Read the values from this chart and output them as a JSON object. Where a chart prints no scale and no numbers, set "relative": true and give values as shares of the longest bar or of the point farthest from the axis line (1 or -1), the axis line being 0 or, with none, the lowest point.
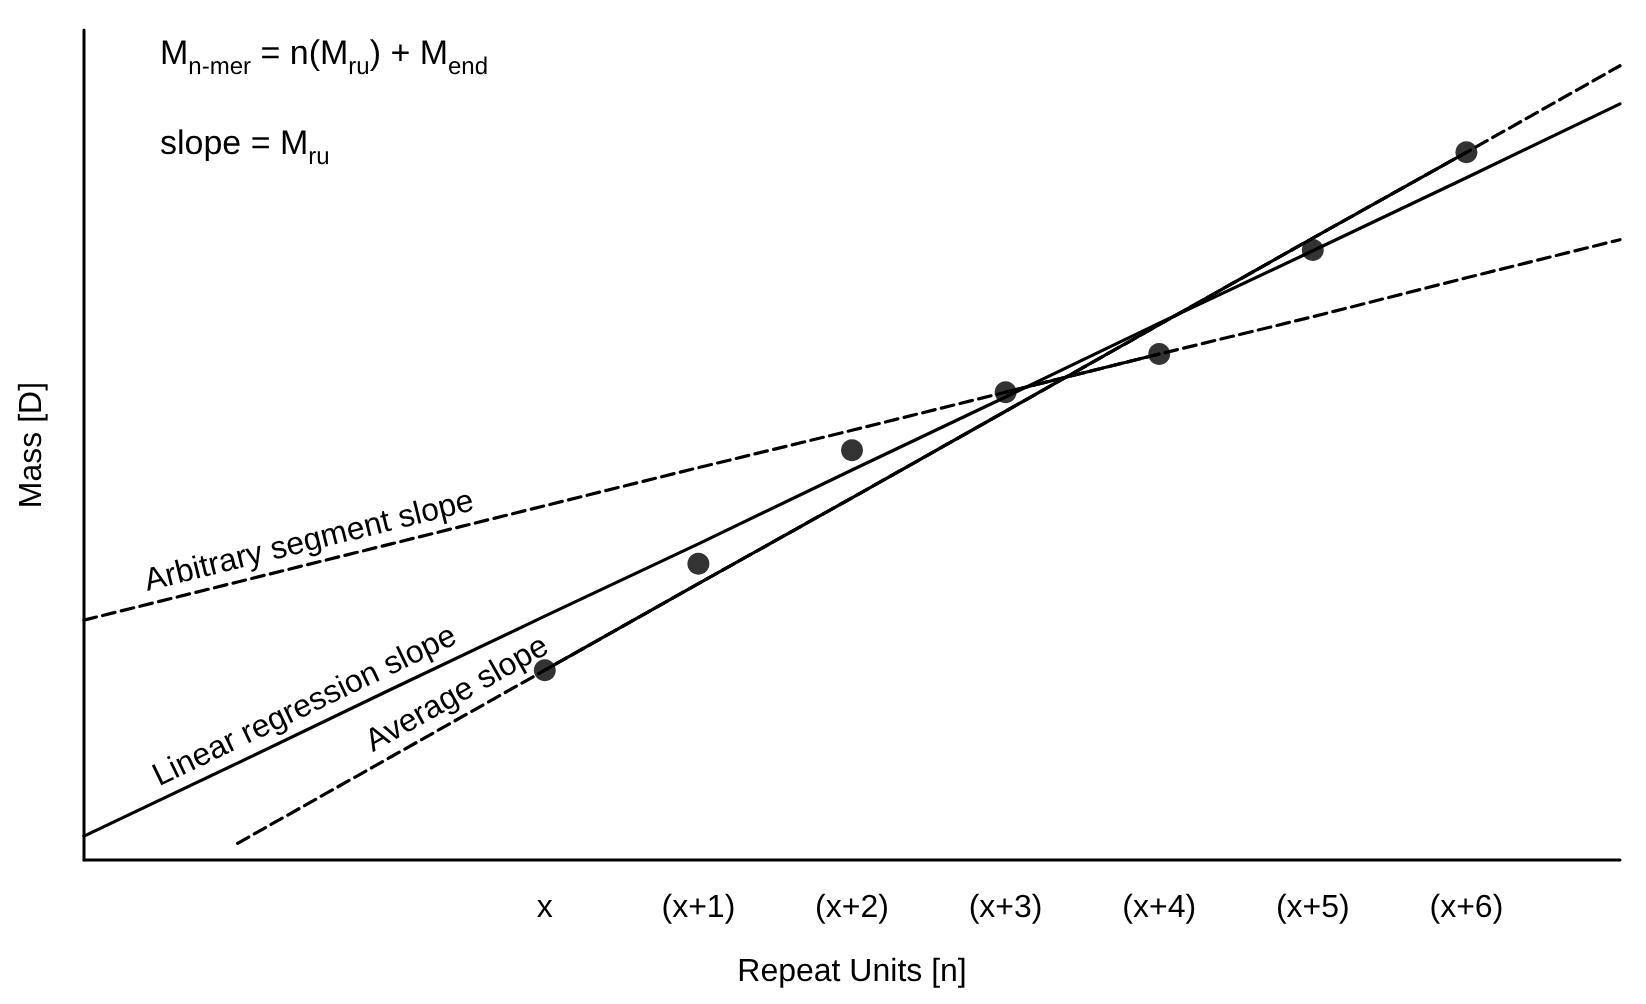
{
  "chart_data": {
    "type": "scatter",
    "relative": true,
    "xlabel": "Repeat Units [n]",
    "ylabel": "Mass [D]",
    "categories": [
      null,
      null,
      null,
      "x",
      "(x+1)",
      "(x+2)",
      "(x+3)",
      "(x+4)",
      "(x+5)",
      "(x+6)",
      null
    ],
    "grid": false,
    "marker": "circle",
    "series": [
      {
        "color": "#000000",
        "values": [
          null,
          null,
          null,
          0.239,
          0.373,
          0.516,
          0.589,
          0.637,
          0.768,
          0.891,
          null
        ]
      },
      {
        "type": "line",
        "name": "Linear regression slope",
        "color": "#000000",
        "line_style": "solid",
        "marker": "none",
        "values": [
          0.03,
          0.122,
          0.215,
          0.307,
          0.398,
          0.491,
          0.583,
          0.676,
          0.767,
          0.859,
          0.952
        ]
      },
      {
        "type": "line",
        "name": "Average slope",
        "color": "#000000",
        "line_style": "dashed",
        "marker": "none",
        "values": [
          null,
          0.021,
          0.13,
          0.239,
          0.348,
          0.456,
          0.565,
          0.674,
          0.783,
          0.891,
          1
        ]
      },
      {
        "type": "line",
        "color": "#000000",
        "line_style": "solid",
        "marker": "none",
        "values": [
          null,
          null,
          null,
          0.239,
          0.348,
          0.456,
          0.565,
          0.674,
          0.783,
          0.891,
          null
        ]
      },
      {
        "type": "line",
        "name": "Arbitrary segment slope",
        "color": "#000000",
        "line_style": "dashed",
        "marker": "none",
        "values": [
          0.302,
          0.35,
          0.398,
          0.446,
          0.494,
          0.541,
          0.589,
          0.637,
          0.684,
          0.733,
          0.781
        ]
      },
      {
        "type": "line",
        "color": "#000000",
        "line_style": "solid",
        "marker": "none",
        "values": [
          null,
          null,
          null,
          null,
          null,
          null,
          0.589,
          0.637,
          null,
          null,
          null
        ]
      }
    ],
    "annotations": [
      "M$_{n-mer}$ = n(M$_{ru}$) + M$_{end}$",
      "slope = M$_{ru}$"
    ]
  }
}
